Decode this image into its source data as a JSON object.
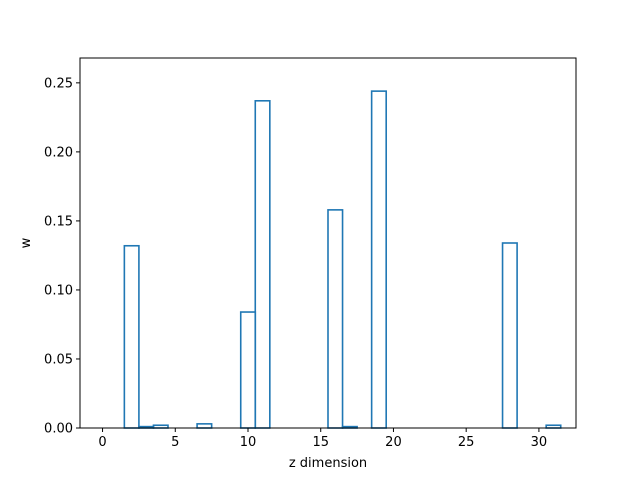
{
  "chart_data": {
    "type": "bar",
    "style": "step-histogram",
    "x": [
      0,
      1,
      2,
      3,
      4,
      5,
      6,
      7,
      8,
      9,
      10,
      11,
      12,
      13,
      14,
      15,
      16,
      17,
      18,
      19,
      20,
      21,
      22,
      23,
      24,
      25,
      26,
      27,
      28,
      29,
      30,
      31
    ],
    "values": [
      0.0,
      0.0,
      0.132,
      0.001,
      0.002,
      0.0,
      0.0,
      0.003,
      0.0,
      0.0,
      0.084,
      0.237,
      0.0,
      0.0,
      0.0,
      0.0,
      0.158,
      0.001,
      0.0,
      0.244,
      0.0,
      0.0,
      0.0,
      0.0,
      0.0,
      0.0,
      0.0,
      0.0,
      0.134,
      0.0,
      0.0,
      0.002
    ],
    "xlabel": "z dimension",
    "ylabel": "w",
    "title": "",
    "xlim": [
      -1.55,
      32.55
    ],
    "ylim": [
      0.0,
      0.268
    ],
    "xticks": [
      0,
      5,
      10,
      15,
      20,
      25,
      30
    ],
    "xtick_labels": [
      "0",
      "5",
      "10",
      "15",
      "20",
      "25",
      "30"
    ],
    "yticks": [
      0.0,
      0.05,
      0.1,
      0.15,
      0.2,
      0.25
    ],
    "ytick_labels": [
      "0.00",
      "0.05",
      "0.10",
      "0.15",
      "0.20",
      "0.25"
    ],
    "grid": false,
    "line_color": "#1f77b4"
  }
}
